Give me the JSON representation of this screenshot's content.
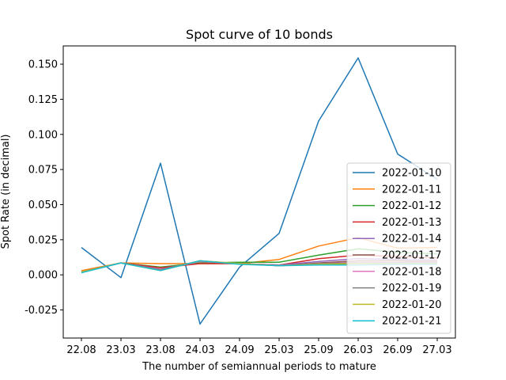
{
  "chart_data": {
    "type": "line",
    "title": "Spot curve of 10 bonds",
    "xlabel": "The number of semiannual periods to mature",
    "ylabel": "Spot Rate (in decimal)",
    "categories": [
      "22.08",
      "23.03",
      "23.08",
      "24.03",
      "24.09",
      "25.03",
      "25.09",
      "26.03",
      "26.09",
      "27.03"
    ],
    "ylim": [
      -0.045,
      0.163
    ],
    "yticks": [
      "-0.025",
      "0.000",
      "0.025",
      "0.050",
      "0.075",
      "0.100",
      "0.125",
      "0.150"
    ],
    "legend_position": "lower-right",
    "grid": false,
    "series": [
      {
        "name": "2022-01-10",
        "color": "#1f77b4",
        "values": [
          0.0195,
          -0.002,
          0.0795,
          -0.035,
          0.0055,
          0.0295,
          0.1095,
          0.1545,
          0.086,
          0.068
        ]
      },
      {
        "name": "2022-01-11",
        "color": "#ff7f0e",
        "values": [
          0.003,
          0.0085,
          0.008,
          0.008,
          0.008,
          0.011,
          0.0205,
          0.0265,
          0.019,
          0.0195
        ]
      },
      {
        "name": "2022-01-12",
        "color": "#2ca02c",
        "values": [
          0.002,
          0.0085,
          0.0055,
          0.0085,
          0.009,
          0.009,
          0.014,
          0.0185,
          0.016,
          0.015
        ]
      },
      {
        "name": "2022-01-13",
        "color": "#d62728",
        "values": [
          0.002,
          0.0085,
          0.005,
          0.008,
          0.008,
          0.007,
          0.0115,
          0.014,
          0.013,
          0.012
        ]
      },
      {
        "name": "2022-01-14",
        "color": "#9467bd",
        "values": [
          0.002,
          0.0085,
          0.004,
          0.0095,
          0.008,
          0.007,
          0.0095,
          0.0115,
          0.011,
          0.0105
        ]
      },
      {
        "name": "2022-01-17",
        "color": "#8c564b",
        "values": [
          0.002,
          0.0085,
          0.0035,
          0.0095,
          0.008,
          0.0065,
          0.0085,
          0.01,
          0.01,
          0.0095
        ]
      },
      {
        "name": "2022-01-18",
        "color": "#e377c2",
        "values": [
          0.002,
          0.0085,
          0.0035,
          0.0095,
          0.008,
          0.0065,
          0.008,
          0.009,
          0.009,
          0.009
        ]
      },
      {
        "name": "2022-01-19",
        "color": "#7f7f7f",
        "values": [
          0.002,
          0.0085,
          0.0035,
          0.01,
          0.008,
          0.0065,
          0.008,
          0.0085,
          0.0085,
          0.0085
        ]
      },
      {
        "name": "2022-01-20",
        "color": "#bcbd22",
        "values": [
          0.002,
          0.0085,
          0.003,
          0.01,
          0.008,
          0.0065,
          0.0075,
          0.008,
          0.008,
          0.008
        ]
      },
      {
        "name": "2022-01-21",
        "color": "#17becf",
        "values": [
          0.0015,
          0.0085,
          0.003,
          0.01,
          0.0075,
          0.0065,
          0.007,
          0.007,
          0.0075,
          0.0075
        ]
      }
    ]
  }
}
